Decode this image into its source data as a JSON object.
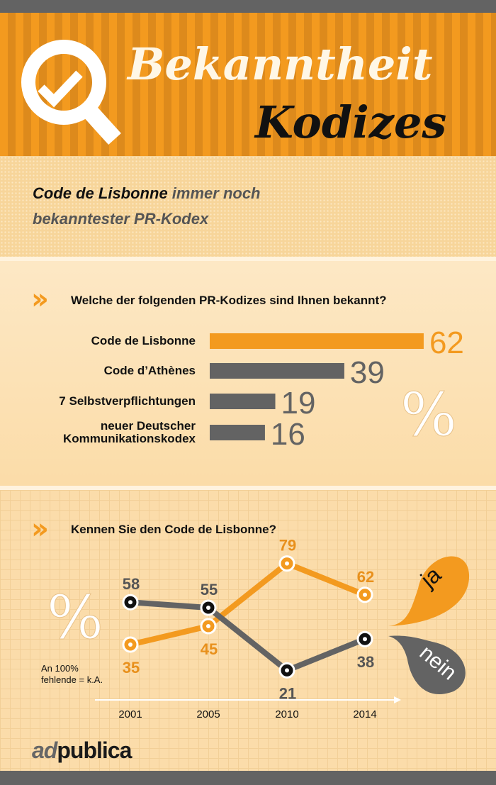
{
  "header": {
    "title_line1": "Bekanntheit",
    "title_line2": "Kodizes",
    "icon": "magnifier-check-icon"
  },
  "subtitle": {
    "strong": "Code de Lisbonne",
    "rest1": " immer noch",
    "line2": "bekanntester PR-Kodex"
  },
  "colors": {
    "orange": "#f39a1f",
    "gray": "#636363"
  },
  "chart_data": [
    {
      "type": "bar",
      "title": "Welche der folgenden PR-Kodizes sind Ihnen bekannt?",
      "unit": "%",
      "categories": [
        "Code de Lisbonne",
        "Code d’Athènes",
        "7 Selbstverpflichtungen",
        "neuer Deutscher Kommunikationskodex"
      ],
      "category_lines": [
        [
          "Code de Lisbonne"
        ],
        [
          "Code d’Athènes"
        ],
        [
          "7 Selbstverpflichtungen"
        ],
        [
          "neuer Deutscher",
          "Kommunikationskodex"
        ]
      ],
      "values": [
        62,
        39,
        19,
        16
      ],
      "highlight": 0
    },
    {
      "type": "line",
      "title": "Kennen Sie den Code de Lisbonne?",
      "unit": "%",
      "x": [
        "2001",
        "2005",
        "2010",
        "2014"
      ],
      "series": [
        {
          "name": "ja",
          "values": [
            35,
            45,
            79,
            62
          ]
        },
        {
          "name": "nein",
          "values": [
            58,
            55,
            21,
            38
          ]
        }
      ],
      "note_line1": "An 100%",
      "note_line2": "fehlende = k.A."
    }
  ],
  "footer": {
    "logo_part1": "ad",
    "logo_part2": "publica"
  }
}
